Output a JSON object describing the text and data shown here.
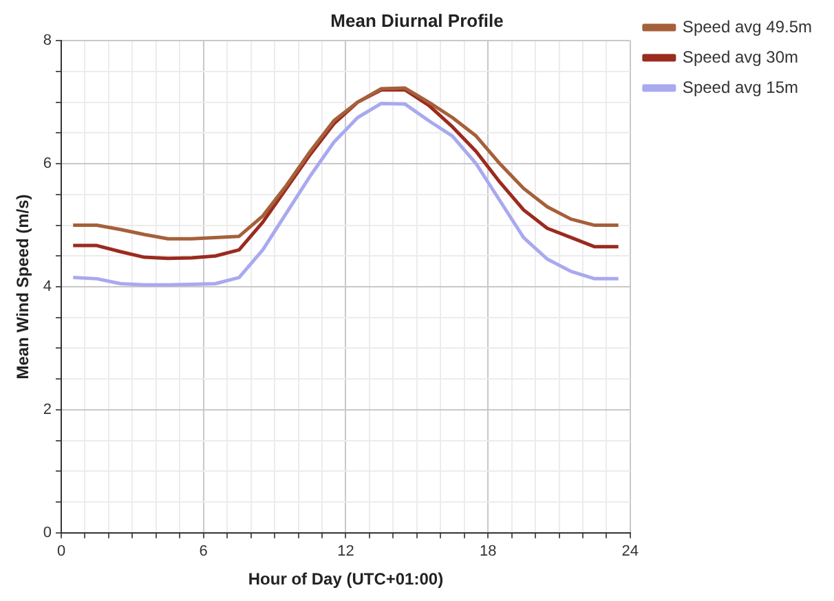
{
  "chart_data": {
    "type": "line",
    "title": "Mean Diurnal Profile",
    "xlabel": "Hour of Day (UTC+01:00)",
    "ylabel": "Mean Wind Speed (m/s)",
    "x": [
      0.5,
      1.5,
      2.5,
      3.5,
      4.5,
      5.5,
      6.5,
      7.5,
      8.5,
      9.5,
      10.5,
      11.5,
      12.5,
      13.5,
      14.5,
      15.5,
      16.5,
      17.5,
      18.5,
      19.5,
      20.5,
      21.5,
      22.5,
      23.5
    ],
    "series": [
      {
        "name": "Speed avg 49.5m",
        "color": "#a5603a",
        "values": [
          5.0,
          5.0,
          4.93,
          4.85,
          4.78,
          4.78,
          4.8,
          4.82,
          5.15,
          5.65,
          6.2,
          6.7,
          7.0,
          7.22,
          7.23,
          7.0,
          6.75,
          6.45,
          6.0,
          5.6,
          5.3,
          5.1,
          5.0,
          5.0
        ]
      },
      {
        "name": "Speed avg 30m",
        "color": "#9b2a1f",
        "values": [
          4.67,
          4.67,
          4.57,
          4.48,
          4.46,
          4.47,
          4.5,
          4.6,
          5.05,
          5.6,
          6.15,
          6.65,
          7.0,
          7.2,
          7.2,
          6.95,
          6.6,
          6.2,
          5.7,
          5.25,
          4.95,
          4.8,
          4.65,
          4.65
        ]
      },
      {
        "name": "Speed avg 15m",
        "color": "#a9a9f0",
        "values": [
          4.15,
          4.13,
          4.05,
          4.03,
          4.03,
          4.04,
          4.05,
          4.15,
          4.6,
          5.2,
          5.8,
          6.35,
          6.75,
          6.98,
          6.97,
          6.7,
          6.45,
          6.0,
          5.4,
          4.8,
          4.45,
          4.25,
          4.13,
          4.13
        ]
      }
    ],
    "xlim": [
      0,
      24
    ],
    "xticks": [
      0,
      {
        "value": 1,
        "label": null
      },
      {
        "value": 2,
        "label": null
      },
      {
        "value": 3,
        "label": null
      },
      {
        "value": 4,
        "label": null
      },
      {
        "value": 5,
        "label": null
      },
      6,
      {
        "value": 7,
        "label": null
      },
      {
        "value": 8,
        "label": null
      },
      {
        "value": 9,
        "label": null
      },
      {
        "value": 10,
        "label": null
      },
      {
        "value": 11,
        "label": null
      },
      12,
      {
        "value": 13,
        "label": null
      },
      {
        "value": 14,
        "label": null
      },
      {
        "value": 15,
        "label": null
      },
      {
        "value": 16,
        "label": null
      },
      {
        "value": 17,
        "label": null
      },
      18,
      {
        "value": 19,
        "label": null
      },
      {
        "value": 20,
        "label": null
      },
      {
        "value": 21,
        "label": null
      },
      {
        "value": 22,
        "label": null
      },
      {
        "value": 23,
        "label": null
      },
      24
    ],
    "ylim": [
      0,
      8
    ],
    "yticks": [
      0,
      {
        "value": 0.5,
        "label": null
      },
      {
        "value": 1,
        "label": null
      },
      {
        "value": 1.5,
        "label": null
      },
      2,
      {
        "value": 2.5,
        "label": null
      },
      {
        "value": 3,
        "label": null
      },
      {
        "value": 3.5,
        "label": null
      },
      4,
      {
        "value": 4.5,
        "label": null
      },
      {
        "value": 5,
        "label": null
      },
      {
        "value": 5.5,
        "label": null
      },
      6,
      {
        "value": 6.5,
        "label": null
      },
      {
        "value": 7,
        "label": null
      },
      {
        "value": 7.5,
        "label": null
      },
      8
    ],
    "grid": true,
    "legend": "top right",
    "marker": "none",
    "line_style": "solid"
  }
}
